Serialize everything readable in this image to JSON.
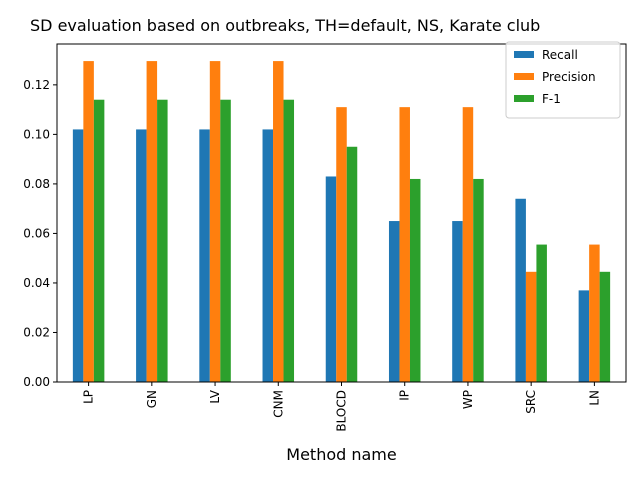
{
  "chart_data": {
    "type": "bar",
    "title": "SD evaluation based on outbreaks, TH=default, NS, Karate club",
    "xlabel": "Method name",
    "ylabel": "",
    "categories": [
      "LP",
      "GN",
      "LV",
      "CNM",
      "BLOCD",
      "IP",
      "WP",
      "SRC",
      "LN"
    ],
    "series": [
      {
        "name": "Recall",
        "color": "#1f77b4",
        "values": [
          0.102,
          0.102,
          0.102,
          0.102,
          0.083,
          0.065,
          0.065,
          0.074,
          0.037
        ]
      },
      {
        "name": "Precision",
        "color": "#ff7f0e",
        "values": [
          0.1296,
          0.1296,
          0.1296,
          0.1296,
          0.111,
          0.111,
          0.111,
          0.0445,
          0.0555
        ]
      },
      {
        "name": "F-1",
        "color": "#2ca02c",
        "values": [
          0.114,
          0.114,
          0.114,
          0.114,
          0.095,
          0.082,
          0.082,
          0.0555,
          0.0445
        ]
      }
    ],
    "ylim": [
      0,
      0.1365
    ],
    "yticks": [
      "0.00",
      "0.02",
      "0.04",
      "0.06",
      "0.08",
      "0.10",
      "0.12"
    ],
    "ytick_values": [
      0,
      0.02,
      0.04,
      0.06,
      0.08,
      0.1,
      0.12
    ],
    "grid": false,
    "legend_position": "top-right"
  }
}
